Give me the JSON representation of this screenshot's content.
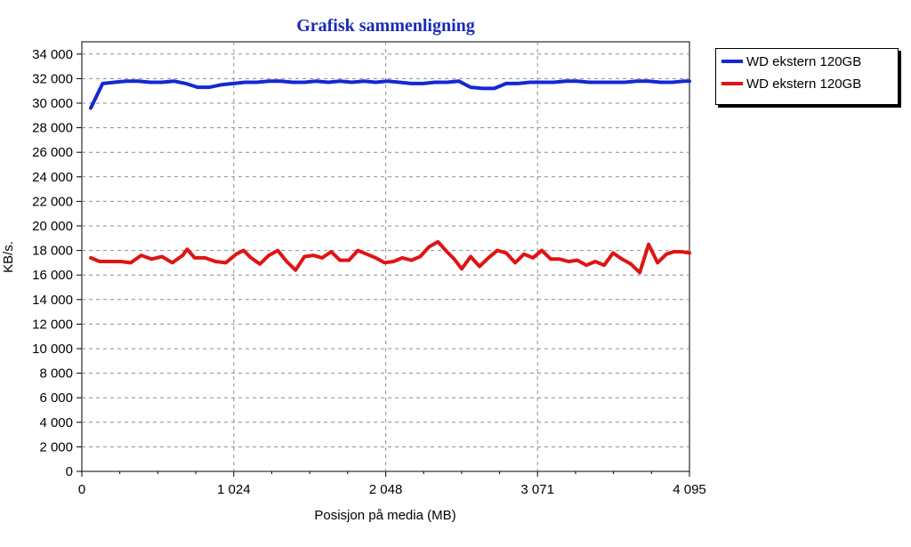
{
  "chart_data": {
    "type": "line",
    "title": "Grafisk sammenligning",
    "xlabel": "Posisjon på media (MB)",
    "ylabel": "KB/s.",
    "xlim": [
      0,
      4095
    ],
    "ylim": [
      0,
      35000
    ],
    "x_ticks": [
      0,
      1024,
      2048,
      3071,
      4095
    ],
    "x_tick_labels": [
      "0",
      "1 024",
      "2 048",
      "3 071",
      "4 095"
    ],
    "y_ticks": [
      0,
      2000,
      4000,
      6000,
      8000,
      10000,
      12000,
      14000,
      16000,
      18000,
      20000,
      22000,
      24000,
      26000,
      28000,
      30000,
      32000,
      34000
    ],
    "y_tick_labels": [
      "0",
      "2 000",
      "4 000",
      "6 000",
      "8 000",
      "10 000",
      "12 000",
      "14 000",
      "16 000",
      "18 000",
      "20 000",
      "22 000",
      "24 000",
      "26 000",
      "28 000",
      "30 000",
      "32 000",
      "34 000"
    ],
    "grid": true,
    "legend_position": "top-right outside plot",
    "series": [
      {
        "name": "WD ekstern 120GB",
        "color": "#1428d2",
        "x": [
          60,
          140,
          220,
          300,
          380,
          460,
          540,
          620,
          700,
          780,
          860,
          940,
          1020,
          1100,
          1180,
          1260,
          1340,
          1420,
          1500,
          1580,
          1660,
          1740,
          1820,
          1900,
          1980,
          2060,
          2140,
          2220,
          2300,
          2380,
          2460,
          2540,
          2620,
          2700,
          2780,
          2860,
          2940,
          3020,
          3100,
          3180,
          3260,
          3340,
          3420,
          3500,
          3580,
          3660,
          3740,
          3820,
          3900,
          3980,
          4060,
          4095
        ],
        "values": [
          29600,
          31600,
          31700,
          31800,
          31800,
          31700,
          31700,
          31800,
          31600,
          31300,
          31300,
          31500,
          31600,
          31700,
          31700,
          31800,
          31800,
          31700,
          31700,
          31800,
          31700,
          31800,
          31700,
          31800,
          31700,
          31800,
          31700,
          31600,
          31600,
          31700,
          31700,
          31800,
          31300,
          31200,
          31200,
          31600,
          31600,
          31700,
          31700,
          31700,
          31800,
          31800,
          31700,
          31700,
          31700,
          31700,
          31800,
          31800,
          31700,
          31700,
          31800,
          31800
        ]
      },
      {
        "name": "WD ekstern 120GB",
        "color": "#e01414",
        "x": [
          60,
          120,
          190,
          260,
          330,
          400,
          470,
          540,
          610,
          680,
          710,
          760,
          830,
          900,
          970,
          1040,
          1090,
          1140,
          1200,
          1260,
          1320,
          1380,
          1440,
          1500,
          1560,
          1620,
          1680,
          1740,
          1800,
          1860,
          1920,
          1980,
          2040,
          2100,
          2160,
          2220,
          2280,
          2340,
          2400,
          2460,
          2510,
          2560,
          2620,
          2680,
          2740,
          2800,
          2860,
          2920,
          2980,
          3040,
          3100,
          3160,
          3220,
          3280,
          3340,
          3400,
          3460,
          3520,
          3580,
          3640,
          3700,
          3760,
          3820,
          3880,
          3940,
          3990,
          4040,
          4095
        ],
        "values": [
          17400,
          17100,
          17100,
          17100,
          17000,
          17600,
          17300,
          17500,
          17000,
          17600,
          18100,
          17400,
          17400,
          17100,
          17000,
          17700,
          18000,
          17400,
          16900,
          17600,
          18000,
          17100,
          16400,
          17500,
          17600,
          17400,
          17900,
          17200,
          17200,
          18000,
          17700,
          17400,
          17000,
          17100,
          17400,
          17200,
          17500,
          18300,
          18700,
          17900,
          17300,
          16500,
          17500,
          16700,
          17400,
          18000,
          17800,
          17000,
          17700,
          17400,
          18000,
          17300,
          17300,
          17100,
          17200,
          16800,
          17100,
          16800,
          17800,
          17300,
          16900,
          16200,
          18500,
          17000,
          17700,
          17900,
          17900,
          17800
        ]
      }
    ]
  }
}
